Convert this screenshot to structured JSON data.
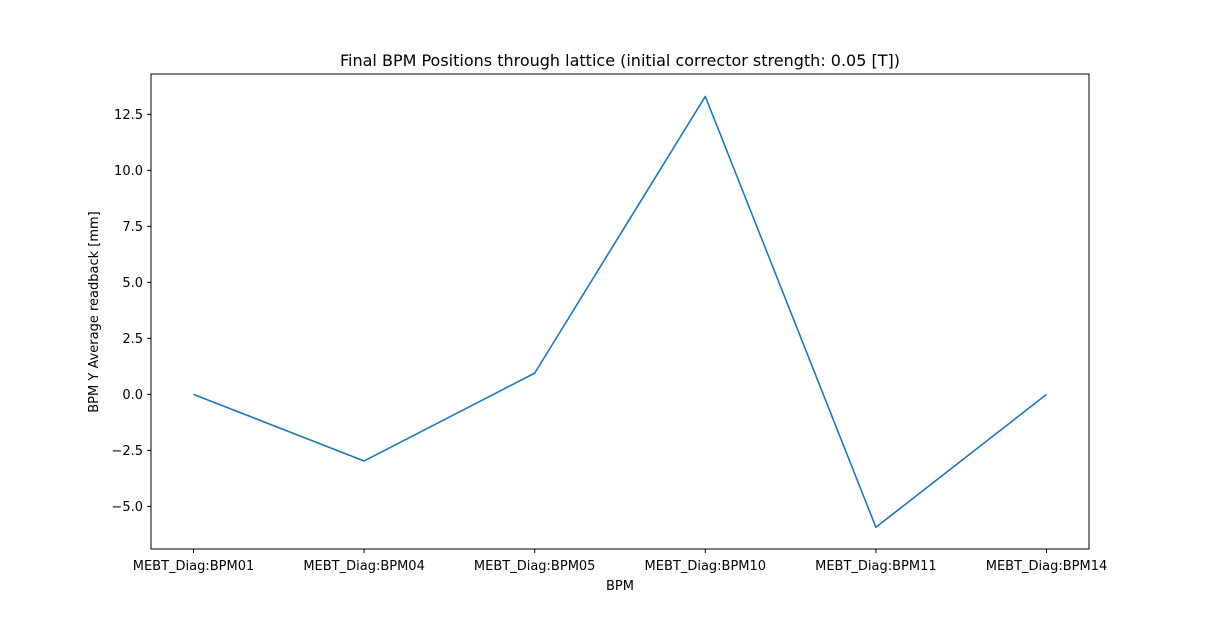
{
  "chart_data": {
    "type": "line",
    "title": "Final BPM Positions through lattice (initial corrector strength: 0.05 [T])",
    "xlabel": "BPM",
    "ylabel": "BPM Y Average readback [mm]",
    "categories": [
      "MEBT_Diag:BPM01",
      "MEBT_Diag:BPM04",
      "MEBT_Diag:BPM05",
      "MEBT_Diag:BPM10",
      "MEBT_Diag:BPM11",
      "MEBT_Diag:BPM14"
    ],
    "series": [
      {
        "values": [
          0.0,
          -2.97,
          0.95,
          13.3,
          -5.93,
          0.0
        ],
        "color": "#1f77b4"
      }
    ],
    "ylim": [
      -6.9,
      14.3
    ],
    "yticks": [
      -5.0,
      -2.5,
      0.0,
      2.5,
      5.0,
      7.5,
      10.0,
      12.5
    ],
    "ytick_labels": [
      "−5.0",
      "−2.5",
      "0.0",
      "2.5",
      "5.0",
      "7.5",
      "10.0",
      "12.5"
    ],
    "grid": false,
    "legend": "none"
  }
}
